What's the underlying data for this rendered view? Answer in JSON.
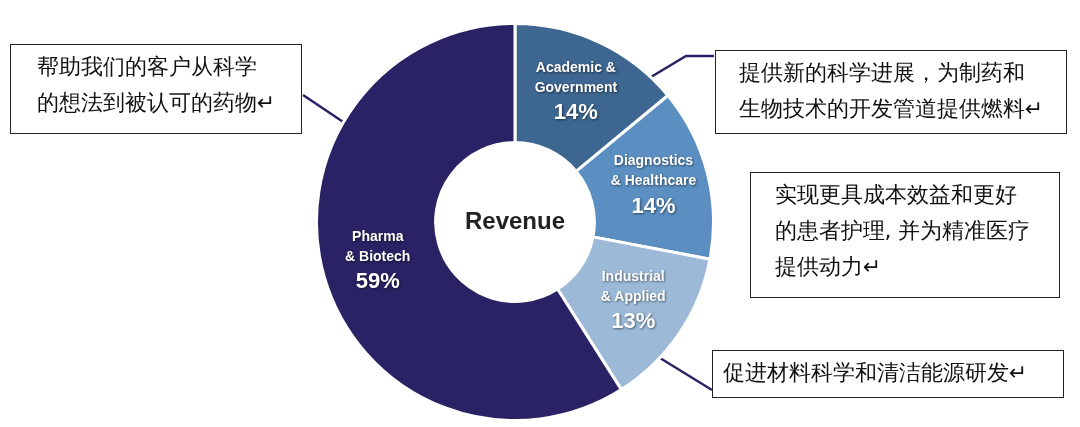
{
  "chart_data": {
    "type": "donut",
    "title": "Revenue",
    "categories": [
      "Academic &\nGovernment",
      "Diagnostics\n& Healthcare",
      "Industrial\n& Applied",
      "Pharma\n& Biotech"
    ],
    "values": [
      14,
      14,
      13,
      59
    ],
    "value_labels": [
      "14%",
      "14%",
      "13%",
      "59%"
    ],
    "colors": [
      "#3d6690",
      "#5b8fc2",
      "#9cbad8",
      "#292365"
    ],
    "legend": false,
    "annotations": [
      "帮助我们的客户从科学的想法到被认可的药物↵",
      "提供新的科学进展，为制药和生物技术的开发管道提供燃料↵",
      "实现更具成本效益和更好的患者护理, 并为精准医疗提供动力↵",
      "促进材料科学和清洁能源研发↵"
    ]
  }
}
